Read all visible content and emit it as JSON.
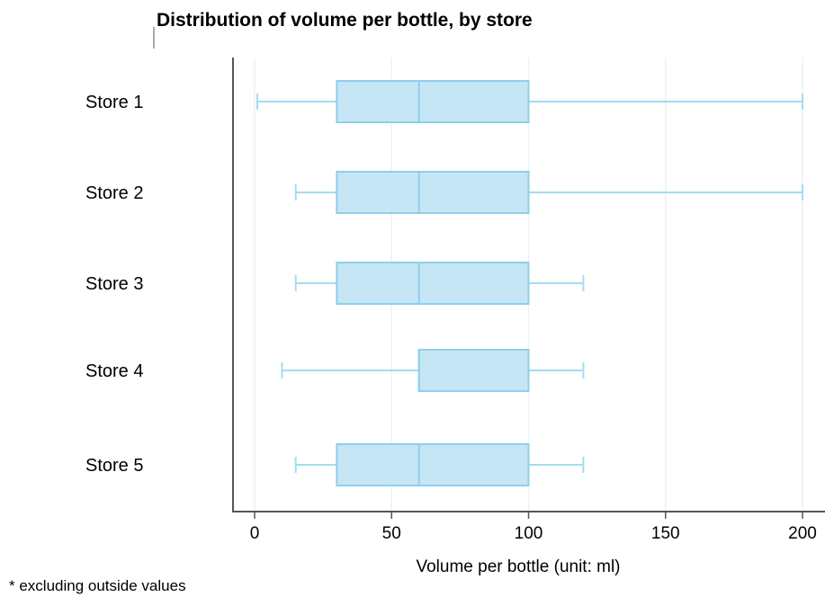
{
  "chart_data": {
    "type": "boxplot",
    "orientation": "horizontal",
    "title": "Distribution of volume per bottle, by store",
    "xlabel": "Volume per bottle (unit: ml)",
    "xlim": [
      -8,
      205
    ],
    "xticks": [
      0,
      50,
      100,
      150,
      200
    ],
    "xtick_labels": [
      "0",
      "50",
      "100",
      "150",
      "200"
    ],
    "grid": true,
    "categories": [
      "Store 1",
      "Store 2",
      "Store 3",
      "Store 4",
      "Store 5"
    ],
    "boxes": [
      {
        "label": "Store 1",
        "min": 1,
        "q1": 30,
        "median": 60,
        "q3": 100,
        "max": 200
      },
      {
        "label": "Store 2",
        "min": 15,
        "q1": 30,
        "median": 60,
        "q3": 100,
        "max": 200
      },
      {
        "label": "Store 3",
        "min": 15,
        "q1": 30,
        "median": 60,
        "q3": 100,
        "max": 120
      },
      {
        "label": "Store 4",
        "min": 10,
        "q1": 60,
        "median": 60,
        "q3": 100,
        "max": 120
      },
      {
        "label": "Store 5",
        "min": 15,
        "q1": 30,
        "median": 60,
        "q3": 100,
        "max": 120
      }
    ],
    "note": "* excluding outside values",
    "colors": {
      "box_fill": "#c6e6f5",
      "box_stroke": "#8fcfec",
      "whisker": "#a6dbef",
      "grid": "#e9f2f5",
      "axis": "#555555"
    }
  }
}
